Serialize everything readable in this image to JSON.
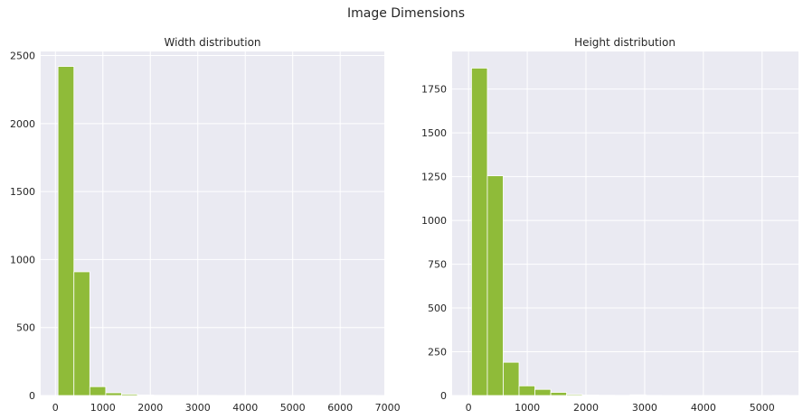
{
  "figure": {
    "title": "Image Dimensions"
  },
  "style": {
    "background": "#eaeaf2",
    "grid": "#ffffff",
    "bar": "#8fbb39",
    "bar_edge": "#ffffff"
  },
  "chart_data": [
    {
      "type": "histogram",
      "title": "Width distribution",
      "xlabel": "",
      "ylabel": "",
      "grid": true,
      "xlim": [
        -310,
        6930
      ],
      "ylim": [
        0,
        2530
      ],
      "xticks": [
        0,
        1000,
        2000,
        3000,
        4000,
        5000,
        6000,
        7000
      ],
      "yticks": [
        0,
        500,
        1000,
        1500,
        2000,
        2500
      ],
      "bins": [
        {
          "x0": 55,
          "x1": 390,
          "count": 2420
        },
        {
          "x0": 390,
          "x1": 725,
          "count": 910
        },
        {
          "x0": 725,
          "x1": 1060,
          "count": 65
        },
        {
          "x0": 1060,
          "x1": 1395,
          "count": 20
        },
        {
          "x0": 1395,
          "x1": 1730,
          "count": 10
        },
        {
          "x0": 1730,
          "x1": 2065,
          "count": 4
        },
        {
          "x0": 2065,
          "x1": 2400,
          "count": 2
        },
        {
          "x0": 2400,
          "x1": 2735,
          "count": 1
        },
        {
          "x0": 2735,
          "x1": 3070,
          "count": 1
        },
        {
          "x0": 3070,
          "x1": 3405,
          "count": 1
        },
        {
          "x0": 3405,
          "x1": 3740,
          "count": 0
        },
        {
          "x0": 3740,
          "x1": 4075,
          "count": 0
        },
        {
          "x0": 4075,
          "x1": 4410,
          "count": 0
        },
        {
          "x0": 4410,
          "x1": 4745,
          "count": 0
        },
        {
          "x0": 4745,
          "x1": 5080,
          "count": 0
        },
        {
          "x0": 5080,
          "x1": 5415,
          "count": 0
        },
        {
          "x0": 5415,
          "x1": 5750,
          "count": 0
        },
        {
          "x0": 5750,
          "x1": 6085,
          "count": 0
        },
        {
          "x0": 6085,
          "x1": 6420,
          "count": 0
        },
        {
          "x0": 6420,
          "x1": 6755,
          "count": 1
        }
      ]
    },
    {
      "type": "histogram",
      "title": "Height distribution",
      "xlabel": "",
      "ylabel": "",
      "grid": true,
      "xlim": [
        -280,
        5620
      ],
      "ylim": [
        0,
        1965
      ],
      "xticks": [
        0,
        1000,
        2000,
        3000,
        4000,
        5000
      ],
      "yticks": [
        0,
        250,
        500,
        750,
        1000,
        1250,
        1500,
        1750
      ],
      "bins": [
        {
          "x0": 50,
          "x1": 320,
          "count": 1870
        },
        {
          "x0": 320,
          "x1": 590,
          "count": 1255
        },
        {
          "x0": 590,
          "x1": 860,
          "count": 190
        },
        {
          "x0": 860,
          "x1": 1130,
          "count": 55
        },
        {
          "x0": 1130,
          "x1": 1400,
          "count": 35
        },
        {
          "x0": 1400,
          "x1": 1670,
          "count": 18
        },
        {
          "x0": 1670,
          "x1": 1940,
          "count": 6
        },
        {
          "x0": 1940,
          "x1": 2210,
          "count": 3
        },
        {
          "x0": 2210,
          "x1": 2480,
          "count": 2
        },
        {
          "x0": 2480,
          "x1": 2750,
          "count": 1
        },
        {
          "x0": 2750,
          "x1": 3020,
          "count": 4
        },
        {
          "x0": 3020,
          "x1": 3290,
          "count": 1
        },
        {
          "x0": 3290,
          "x1": 3560,
          "count": 0
        },
        {
          "x0": 3560,
          "x1": 3830,
          "count": 0
        },
        {
          "x0": 3830,
          "x1": 4100,
          "count": 0
        },
        {
          "x0": 4100,
          "x1": 4370,
          "count": 0
        },
        {
          "x0": 4370,
          "x1": 4640,
          "count": 0
        },
        {
          "x0": 4640,
          "x1": 4910,
          "count": 0
        },
        {
          "x0": 4910,
          "x1": 5180,
          "count": 0
        },
        {
          "x0": 5180,
          "x1": 5450,
          "count": 1
        }
      ]
    }
  ]
}
